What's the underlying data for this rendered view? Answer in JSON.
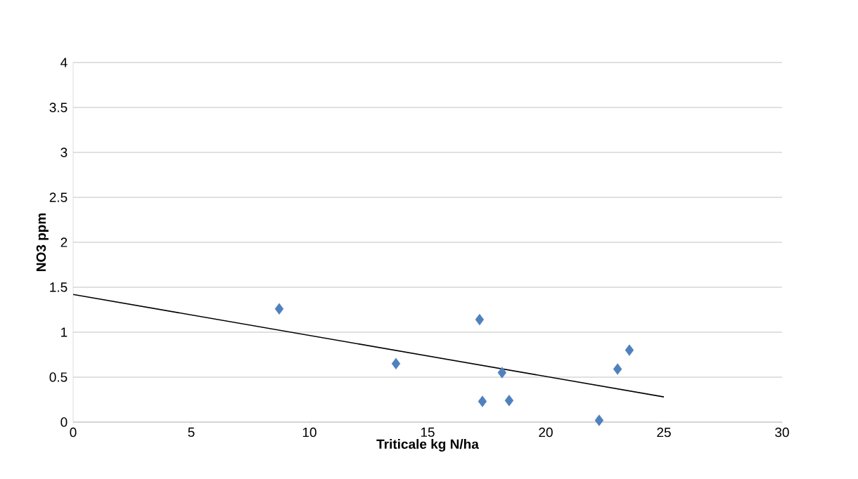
{
  "chart_data": {
    "type": "scatter",
    "xlabel": "Triticale kg N/ha",
    "ylabel": "NO3 ppm",
    "xlim": [
      0,
      30
    ],
    "xticks": [
      0,
      5,
      10,
      15,
      20,
      25,
      30
    ],
    "ylim": [
      0,
      4
    ],
    "yticks": [
      0,
      0.5,
      1,
      1.5,
      2,
      2.5,
      3,
      3.5,
      4
    ],
    "grid": "y",
    "series": [
      {
        "color": "#4f81bd",
        "marker": "diamond",
        "x": [
          8.72,
          13.66,
          17.2,
          17.32,
          18.15,
          18.45,
          22.26,
          23.04,
          23.54
        ],
        "values": [
          1.26,
          0.65,
          1.14,
          0.23,
          0.55,
          0.24,
          0.02,
          0.59,
          0.8
        ]
      },
      {
        "type": "line",
        "color": "#000000",
        "marker": "none",
        "line_style": "solid",
        "x": [
          0,
          25
        ],
        "values": [
          1.42,
          0.28
        ]
      }
    ]
  }
}
